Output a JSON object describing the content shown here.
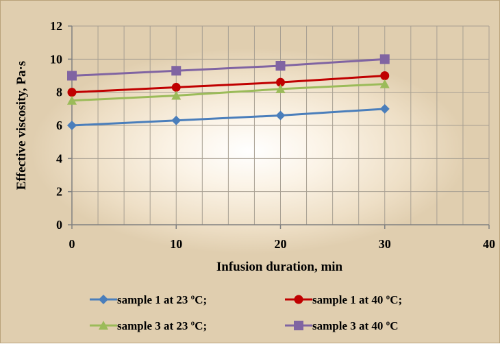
{
  "chart_data": {
    "type": "line",
    "xlabel": "Infusion duration, min",
    "ylabel": "Effective viscosity, Pa·s",
    "xlim": [
      0,
      40
    ],
    "ylim": [
      0,
      12
    ],
    "x_ticks": [
      0,
      10,
      20,
      30,
      40
    ],
    "y_ticks": [
      0,
      2,
      4,
      6,
      8,
      10,
      12
    ],
    "x_tick_labels": [
      "0",
      "10",
      "20",
      "30",
      "40"
    ],
    "y_tick_labels": [
      "0",
      "2",
      "4",
      "6",
      "8",
      "10",
      "12"
    ],
    "grid": true,
    "legend_position": "bottom",
    "x": [
      0,
      10,
      20,
      30
    ],
    "series": [
      {
        "name": "sample 1 at 23 ºC;",
        "values": [
          6.0,
          6.3,
          6.6,
          7.0
        ],
        "color": "#4a7ebb",
        "marker": "diamond"
      },
      {
        "name": "sample 1 at 40 ºC;",
        "values": [
          8.0,
          8.3,
          8.6,
          9.0
        ],
        "color": "#c00000",
        "marker": "circle"
      },
      {
        "name": "sample 3 at 23 ºC;",
        "values": [
          7.5,
          7.8,
          8.2,
          8.5
        ],
        "color": "#9bbb59",
        "marker": "triangle"
      },
      {
        "name": "sample 3 at 40 ºC",
        "values": [
          9.0,
          9.3,
          9.6,
          10.0
        ],
        "color": "#8064a2",
        "marker": "square"
      }
    ]
  }
}
